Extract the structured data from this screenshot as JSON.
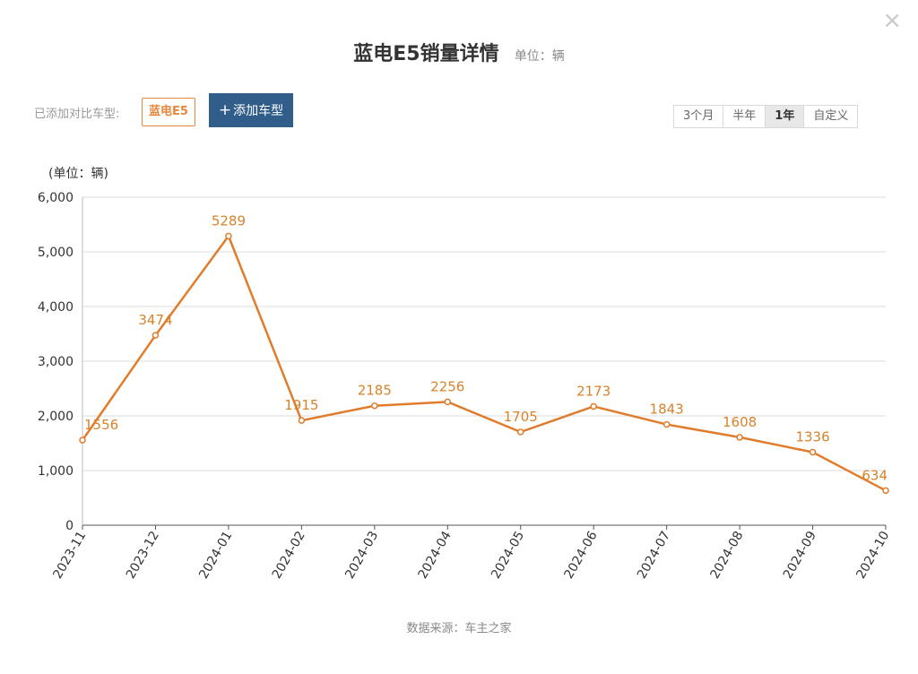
{
  "window": {
    "close_glyph": "×"
  },
  "header": {
    "title": "蓝电E5销量详情",
    "unit": "单位：辆"
  },
  "compare": {
    "label": "已添加对比车型:",
    "model_chip": "蓝电E5",
    "add_button": "添加车型",
    "add_icon": "+"
  },
  "range_tabs": [
    {
      "label": "3个月",
      "active": false
    },
    {
      "label": "半年",
      "active": false
    },
    {
      "label": "1年",
      "active": true
    },
    {
      "label": "自定义",
      "active": false
    }
  ],
  "source": "数据来源：车主之家",
  "chart_data": {
    "type": "line",
    "unit_label": "(单位：辆)",
    "categories": [
      "2023-11",
      "2023-12",
      "2024-01",
      "2024-02",
      "2024-03",
      "2024-04",
      "2024-05",
      "2024-06",
      "2024-07",
      "2024-08",
      "2024-09",
      "2024-10"
    ],
    "values": [
      1556,
      3474,
      5289,
      1915,
      2185,
      2256,
      1705,
      2173,
      1843,
      1608,
      1336,
      634
    ],
    "ylim": [
      0,
      6000
    ],
    "yticks": [
      "0",
      "1,000",
      "2,000",
      "3,000",
      "4,000",
      "5,000",
      "6,000"
    ],
    "grid": true,
    "line_color": "#e07d2c",
    "label_color": "#d9822b",
    "xlabel": "",
    "ylabel": ""
  }
}
